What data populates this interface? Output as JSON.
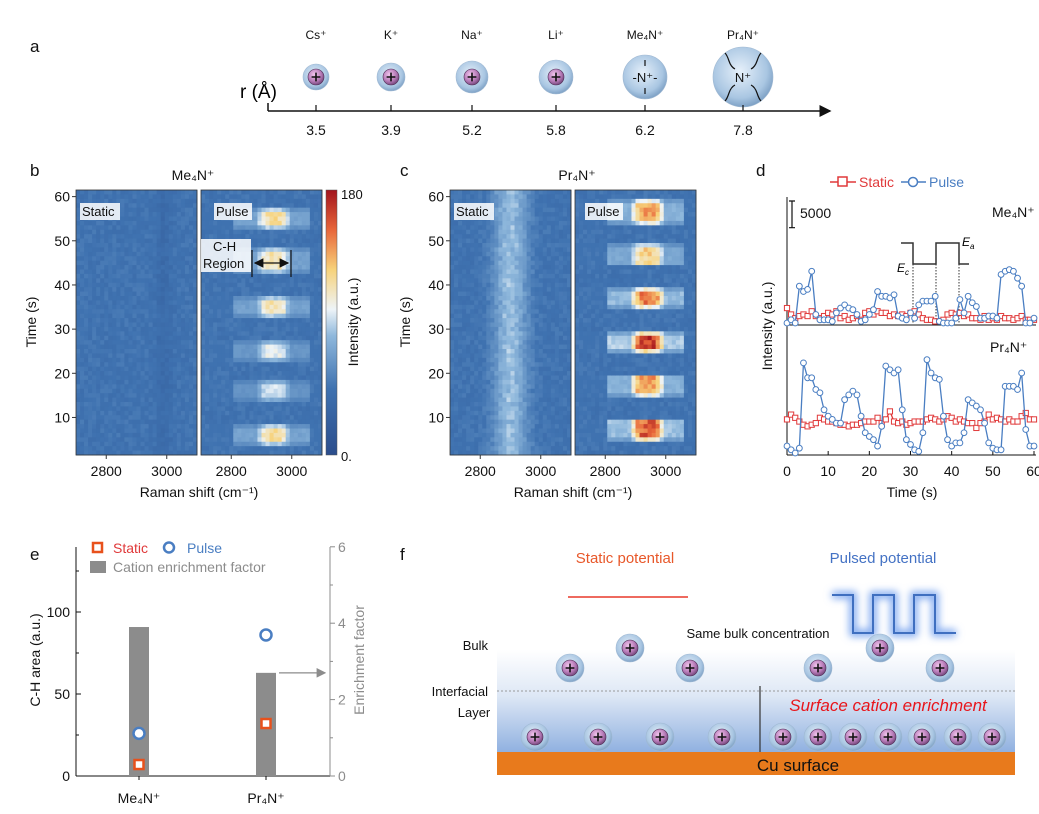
{
  "panels": {
    "a": "a",
    "b": "b",
    "c": "c",
    "d": "d",
    "e": "e",
    "f": "f"
  },
  "panel_a": {
    "axis_label": "r (Å)",
    "ions": [
      {
        "name": "Cs⁺",
        "r": "3.5",
        "type": "simple"
      },
      {
        "name": "K⁺",
        "r": "3.9",
        "type": "simple"
      },
      {
        "name": "Na⁺",
        "r": "5.2",
        "type": "simple"
      },
      {
        "name": "Li⁺",
        "r": "5.8",
        "type": "simple"
      },
      {
        "name": "Me₄N⁺",
        "r": "6.2",
        "type": "ammonium",
        "glyph": "-N⁺-"
      },
      {
        "name": "Pr₄N⁺",
        "r": "7.8",
        "type": "ammonium",
        "glyph": "N⁺"
      }
    ]
  },
  "chart_data": [
    {
      "id": "b",
      "type": "heatmap",
      "title": "Me₄N⁺",
      "xlabel": "Raman shift (cm⁻¹)",
      "ylabel": "Time (s)",
      "xlim": [
        2700,
        3100
      ],
      "ylim": [
        1.5,
        61.5
      ],
      "xticks": [
        "2800",
        "3000"
      ],
      "yticks": [
        "10",
        "20",
        "30",
        "40",
        "50",
        "60"
      ],
      "colorbar": {
        "label": "Intensity (a.u.)",
        "min_label": "0.",
        "max_label": "180",
        "range": [
          0,
          180
        ]
      },
      "subpanels": [
        {
          "label": "Static",
          "background": 45,
          "band": {
            "center": 2990,
            "width": 25,
            "delta": -8
          }
        },
        {
          "label": "Pulse",
          "background": 45,
          "annotation": "C-H",
          "annotation2": "Region",
          "ch_region": [
            2880,
            3000
          ],
          "hotspots": [
            {
              "t": 55,
              "peak": 120
            },
            {
              "t": 45.5,
              "peak": 115
            },
            {
              "t": 35,
              "peak": 115
            },
            {
              "t": 25,
              "peak": 100
            },
            {
              "t": 15.8,
              "peak": 95
            },
            {
              "t": 6,
              "peak": 118
            }
          ]
        }
      ]
    },
    {
      "id": "c",
      "type": "heatmap",
      "title": "Pr₄N⁺",
      "xlabel": "Raman shift (cm⁻¹)",
      "ylabel": "Time (s)",
      "xlim": [
        2700,
        3100
      ],
      "ylim": [
        1.5,
        61.5
      ],
      "xticks": [
        "2800",
        "3000"
      ],
      "yticks": [
        "10",
        "20",
        "30",
        "40",
        "50",
        "60"
      ],
      "subpanels": [
        {
          "label": "Static",
          "background": 45,
          "band": {
            "center": 2900,
            "width": 55,
            "delta": 38
          }
        },
        {
          "label": "Pulse",
          "background": 45,
          "hotspots": [
            {
              "t": 56.5,
              "peak": 140
            },
            {
              "t": 46.8,
              "peak": 125
            },
            {
              "t": 37,
              "peak": 150
            },
            {
              "t": 27,
              "peak": 168
            },
            {
              "t": 17.4,
              "peak": 142
            },
            {
              "t": 7.2,
              "peak": 158
            }
          ]
        }
      ]
    },
    {
      "id": "d",
      "type": "line",
      "xlabel": "Time (s)",
      "ylabel": "Intensity (a.u.)",
      "xlim": [
        0,
        60
      ],
      "xticks": [
        "0",
        "10",
        "20",
        "30",
        "40",
        "50",
        "60"
      ],
      "scale_bar": "5000",
      "scale_bar_value": 5000,
      "legend": [
        {
          "name": "Static",
          "color": "#e0393a",
          "marker": "square"
        },
        {
          "name": "Pulse",
          "color": "#4a7ec2",
          "marker": "circle"
        }
      ],
      "waveform_labels": {
        "cathodic": "E",
        "cathodic_sub": "c",
        "anodic": "E",
        "anodic_sub": "a"
      },
      "panels": [
        {
          "label": "Me₄N⁺",
          "pulse": [
            0,
            600,
            0,
            6900,
            5900,
            6300,
            9700,
            1600,
            600,
            600,
            600,
            300,
            1900,
            2800,
            3400,
            2800,
            2500,
            1600,
            300,
            600,
            1600,
            2500,
            5900,
            5000,
            5000,
            4700,
            5300,
            1300,
            900,
            600,
            1900,
            900,
            3400,
            4100,
            4100,
            4100,
            5000,
            300,
            0,
            0,
            0,
            900,
            4400,
            1900,
            5000,
            3800,
            3100,
            900,
            900,
            1300,
            1300,
            900,
            9100,
            9700,
            10000,
            9700,
            8400,
            6900,
            0,
            0,
            900
          ],
          "static": [
            2800,
            1600,
            900,
            1300,
            1600,
            1300,
            2200,
            1300,
            900,
            1300,
            1900,
            1600,
            2200,
            900,
            1300,
            600,
            900,
            1300,
            600,
            1900,
            2200,
            1600,
            2200,
            1900,
            1900,
            1300,
            1600,
            1300,
            1600,
            1300,
            1900,
            2200,
            1600,
            900,
            600,
            600,
            300,
            300,
            600,
            1600,
            1900,
            1600,
            1900,
            1300,
            1600,
            900,
            900,
            600,
            1300,
            600,
            900,
            600,
            1300,
            900,
            900,
            600,
            900,
            1300,
            600,
            600,
            600
          ]
        },
        {
          "label": "Pr₄N⁺",
          "pulse": [
            1300,
            600,
            0,
            900,
            16900,
            14100,
            14100,
            11900,
            11300,
            8100,
            6900,
            6300,
            5600,
            5600,
            10000,
            10900,
            11600,
            10900,
            6900,
            3800,
            3100,
            2500,
            1300,
            5000,
            16300,
            15600,
            15000,
            15600,
            8100,
            2500,
            1600,
            600,
            300,
            3800,
            17500,
            15000,
            14100,
            13800,
            6900,
            2500,
            1300,
            1900,
            1900,
            3800,
            10000,
            9400,
            8800,
            8100,
            5600,
            1900,
            900,
            600,
            600,
            12500,
            12500,
            12500,
            11900,
            15000,
            4400,
            1300,
            1300
          ],
          "static": [
            6300,
            7200,
            6600,
            5900,
            5300,
            5000,
            5300,
            5600,
            6600,
            6300,
            5900,
            5900,
            5600,
            5300,
            5300,
            5000,
            5300,
            5300,
            5600,
            5900,
            5900,
            5900,
            6600,
            5600,
            6300,
            7800,
            5900,
            5600,
            5900,
            5300,
            5600,
            5900,
            5900,
            5900,
            6300,
            6600,
            6300,
            5900,
            6300,
            6900,
            6600,
            5900,
            6300,
            5900,
            5600,
            5600,
            4700,
            5600,
            5900,
            7200,
            6300,
            6600,
            6300,
            5900,
            6300,
            5900,
            5900,
            6900,
            7500,
            6300,
            6300
          ]
        }
      ]
    },
    {
      "id": "e",
      "type": "bar",
      "categories": [
        "Me₄N⁺",
        "Pr₄N⁺"
      ],
      "ylabel": "C-H area (a.u.)",
      "ylim": [
        0,
        140
      ],
      "yticks": [
        "0",
        "50",
        "100"
      ],
      "y2label": "Enrichment factor",
      "y2lim": [
        0,
        6
      ],
      "y2ticks": [
        "0",
        "2",
        "4",
        "6"
      ],
      "legend": [
        {
          "name": "Static",
          "color": "#e8511c"
        },
        {
          "name": "Pulse",
          "color": "#4a7ec2"
        },
        {
          "name": "Cation enrichment factor",
          "color": "#8c8c8c"
        }
      ],
      "series": [
        {
          "name": "Cation enrichment factor",
          "axis": "right",
          "values": [
            3.9,
            2.7
          ]
        },
        {
          "name": "Static",
          "axis": "left",
          "values": [
            7,
            32
          ]
        },
        {
          "name": "Pulse",
          "axis": "left",
          "values": [
            26,
            86
          ]
        }
      ]
    }
  ],
  "panel_f": {
    "static_label": "Static potential",
    "pulsed_label": "Pulsed potential",
    "bulk_text": "Same bulk concentration",
    "bulk_label": "Bulk",
    "interfacial_label_1": "Interfacial",
    "interfacial_label_2": "Layer",
    "enrichment_text": "Surface cation enrichment",
    "cu_label": "Cu surface",
    "colors": {
      "static": "#e8582a",
      "pulsed": "#4472c4",
      "cu": "#e87a1c",
      "enrichment": "#e8151b"
    }
  }
}
